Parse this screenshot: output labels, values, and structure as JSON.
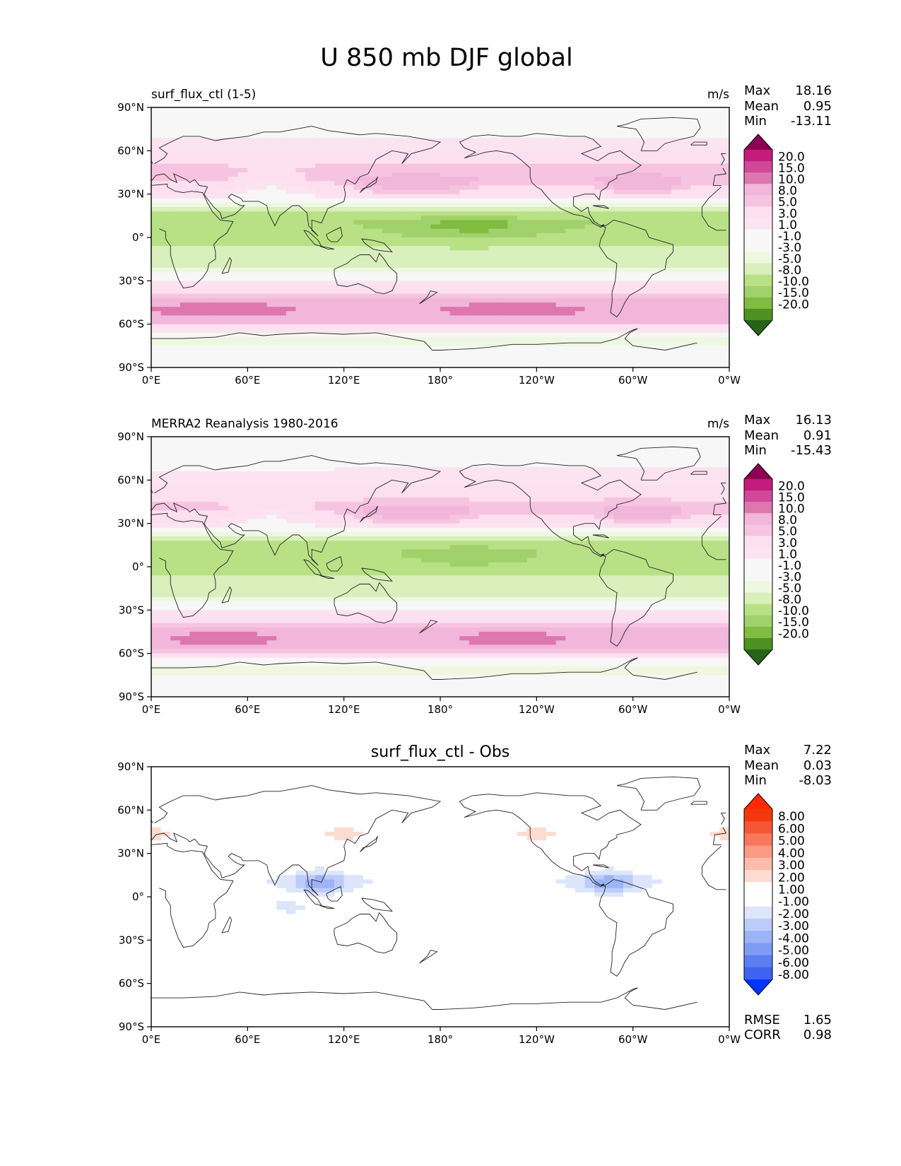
{
  "figure_title": "U 850 mb DJF global",
  "xticks": [
    "0°E",
    "60°E",
    "120°E",
    "180°",
    "120°W",
    "60°W",
    "0°W"
  ],
  "yticks": [
    "90°N",
    "60°N",
    "30°N",
    "0°",
    "30°S",
    "60°S",
    "90°S"
  ],
  "colors": {
    "pink_green": [
      "#276419",
      "#4d9221",
      "#7fbc41",
      "#a1d16a",
      "#b8e186",
      "#d9efbc",
      "#eef7e0",
      "#f7f7f7",
      "#f7f7f7",
      "#fbe4f0",
      "#fde0ef",
      "#f6c4e1",
      "#f1b6da",
      "#de77ae",
      "#d1489a",
      "#c51b7d",
      "#8e0152"
    ],
    "diff": [
      "#0034ff",
      "#3d63f0",
      "#5b7ff2",
      "#7f9cf5",
      "#9db3f7",
      "#bccbf9",
      "#dde5fb",
      "#ffffff",
      "#ffffff",
      "#fcdcd0",
      "#fbbcaa",
      "#f99a84",
      "#f7785d",
      "#f55636",
      "#f3380f",
      "#ff2a00"
    ]
  },
  "chart_data": [
    {
      "type": "heatmap",
      "panel": "model",
      "title": "",
      "left_label": "surf_flux_ctl (1-5)",
      "units": "m/s",
      "stats": {
        "max_label": "Max",
        "max": "18.16",
        "mean_label": "Mean",
        "mean": "0.95",
        "min_label": "Min",
        "min": "-13.11"
      },
      "colorbar_levels": [
        "20.0",
        "15.0",
        "10.0",
        "8.0",
        "5.0",
        "3.0",
        "1.0",
        "-1.0",
        "-3.0",
        "-5.0",
        "-8.0",
        "-10.0",
        "-15.0",
        "-20.0"
      ],
      "xlim": [
        0,
        360
      ],
      "ylim": [
        -90,
        90
      ],
      "zonal_profile": {
        "lat": [
          90,
          75,
          60,
          50,
          40,
          30,
          20,
          10,
          0,
          -10,
          -20,
          -30,
          -40,
          -45,
          -50,
          -55,
          -60,
          -65,
          -70,
          -75,
          -80,
          -90
        ],
        "u": [
          1,
          2,
          5,
          8,
          9,
          5,
          -4,
          -8,
          -7,
          -4,
          -3,
          2,
          9,
          13,
          15,
          14,
          9,
          3,
          -2,
          -1,
          0,
          0
        ]
      }
    },
    {
      "type": "heatmap",
      "panel": "obs",
      "title": "",
      "left_label": "MERRA2 Reanalysis 1980-2016",
      "units": "m/s",
      "stats": {
        "max_label": "Max",
        "max": "16.13",
        "mean_label": "Mean",
        "mean": "0.91",
        "min_label": "Min",
        "min": "-15.43"
      },
      "colorbar_levels": [
        "20.0",
        "15.0",
        "10.0",
        "8.0",
        "5.0",
        "3.0",
        "1.0",
        "-1.0",
        "-3.0",
        "-5.0",
        "-8.0",
        "-10.0",
        "-15.0",
        "-20.0"
      ],
      "xlim": [
        0,
        360
      ],
      "ylim": [
        -90,
        90
      ],
      "zonal_profile": {
        "lat": [
          90,
          75,
          60,
          50,
          40,
          30,
          20,
          10,
          0,
          -10,
          -20,
          -30,
          -40,
          -45,
          -50,
          -55,
          -60,
          -65,
          -70,
          -75,
          -80,
          -90
        ],
        "u": [
          1,
          2,
          4,
          7,
          9,
          5,
          -4,
          -7,
          -6,
          -4,
          -3,
          2,
          9,
          13,
          14,
          13,
          8,
          2,
          -2,
          -1,
          0,
          0
        ]
      }
    },
    {
      "type": "heatmap",
      "panel": "diff",
      "title": "surf_flux_ctl - Obs",
      "left_label": "",
      "units": "",
      "stats": {
        "max_label": "Max",
        "max": "7.22",
        "mean_label": "Mean",
        "mean": "0.03",
        "min_label": "Min",
        "min": "-8.03"
      },
      "colorbar_levels": [
        "8.00",
        "6.00",
        "5.00",
        "4.00",
        "3.00",
        "2.00",
        "1.00",
        "-1.00",
        "-2.00",
        "-3.00",
        "-4.00",
        "-5.00",
        "-6.00",
        "-8.00"
      ],
      "xlim": [
        0,
        360
      ],
      "ylim": [
        -90,
        90
      ],
      "metrics": {
        "rmse_label": "RMSE",
        "rmse": "1.65",
        "corr_label": "CORR",
        "corr": "0.98"
      },
      "zonal_profile": {
        "lat": [
          90,
          75,
          60,
          50,
          40,
          30,
          20,
          10,
          0,
          -10,
          -20,
          -30,
          -40,
          -45,
          -50,
          -55,
          -60,
          -65,
          -70,
          -75,
          -80,
          -90
        ],
        "u": [
          0.5,
          0.5,
          -1,
          0.5,
          1,
          0.5,
          -0.5,
          -1,
          -0.5,
          0.5,
          -0.5,
          0,
          1,
          1.5,
          2,
          1.5,
          0.5,
          0,
          -0.5,
          0,
          0,
          0
        ]
      }
    }
  ]
}
